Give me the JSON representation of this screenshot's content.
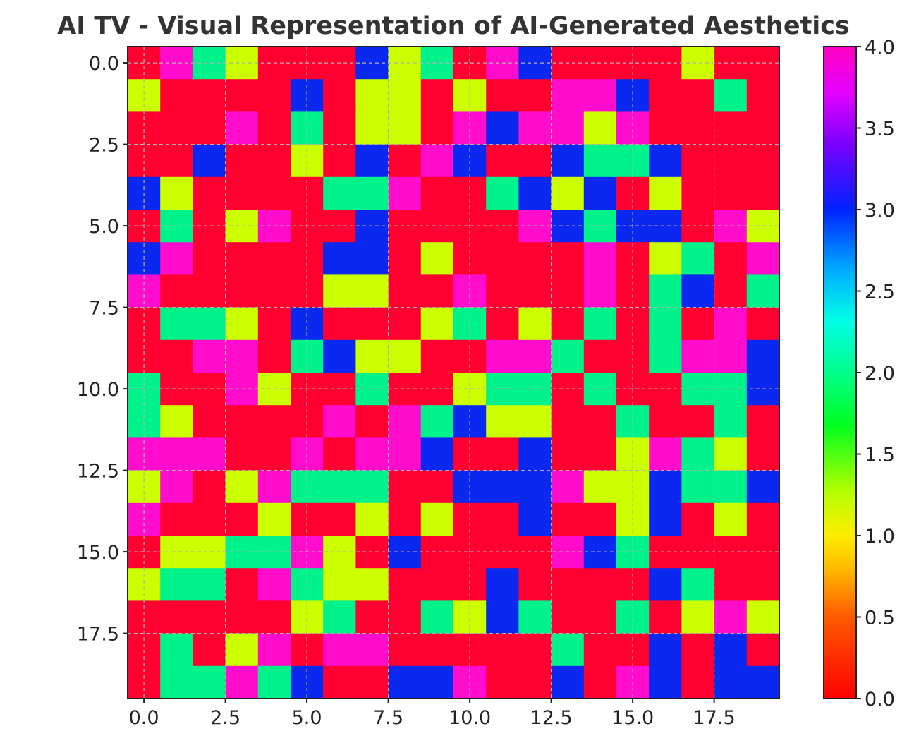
{
  "chart_data": {
    "type": "heatmap",
    "title": "AI TV - Visual Representation of AI-Generated Aesthetics",
    "xlabel": "",
    "ylabel": "",
    "colormap": "gist_rainbow_r",
    "value_range": [
      0,
      4
    ],
    "grid": true,
    "x_ticks": [
      "0.0",
      "2.5",
      "5.0",
      "7.5",
      "10.0",
      "12.5",
      "15.0",
      "17.5"
    ],
    "y_ticks": [
      "0.0",
      "2.5",
      "5.0",
      "7.5",
      "10.0",
      "12.5",
      "15.0",
      "17.5"
    ],
    "colorbar_ticks": [
      "0.0",
      "0.5",
      "1.0",
      "1.5",
      "2.0",
      "2.5",
      "3.0",
      "3.5",
      "4.0"
    ],
    "rows": 20,
    "cols": 20,
    "values": [
      [
        0,
        4,
        2,
        1,
        0,
        0,
        0,
        3,
        1,
        2,
        0,
        4,
        3,
        0,
        0,
        0,
        0,
        1,
        0,
        0
      ],
      [
        1,
        0,
        0,
        0,
        0,
        3,
        0,
        1,
        1,
        0,
        1,
        0,
        0,
        4,
        4,
        3,
        0,
        0,
        2,
        0
      ],
      [
        0,
        0,
        0,
        4,
        0,
        2,
        0,
        1,
        1,
        0,
        4,
        3,
        4,
        4,
        1,
        4,
        0,
        0,
        0,
        0
      ],
      [
        0,
        0,
        3,
        0,
        0,
        1,
        0,
        3,
        0,
        4,
        3,
        0,
        0,
        3,
        2,
        2,
        3,
        0,
        0,
        0
      ],
      [
        3,
        1,
        0,
        0,
        0,
        0,
        2,
        2,
        4,
        0,
        0,
        2,
        3,
        1,
        3,
        0,
        1,
        0,
        0,
        0
      ],
      [
        0,
        2,
        0,
        1,
        4,
        0,
        0,
        3,
        0,
        0,
        0,
        0,
        4,
        3,
        2,
        3,
        3,
        0,
        4,
        1
      ],
      [
        3,
        4,
        0,
        0,
        0,
        0,
        3,
        3,
        0,
        1,
        0,
        0,
        0,
        0,
        4,
        0,
        1,
        2,
        0,
        4
      ],
      [
        4,
        0,
        0,
        0,
        0,
        0,
        1,
        1,
        0,
        0,
        4,
        0,
        0,
        0,
        4,
        0,
        2,
        3,
        0,
        2
      ],
      [
        0,
        2,
        2,
        1,
        0,
        3,
        0,
        0,
        0,
        1,
        2,
        0,
        1,
        0,
        2,
        0,
        2,
        0,
        4,
        0
      ],
      [
        0,
        0,
        4,
        4,
        0,
        2,
        3,
        1,
        1,
        0,
        0,
        4,
        4,
        2,
        0,
        0,
        2,
        4,
        4,
        3
      ],
      [
        2,
        0,
        0,
        4,
        1,
        0,
        0,
        2,
        0,
        0,
        1,
        2,
        2,
        0,
        2,
        0,
        0,
        2,
        2,
        3
      ],
      [
        2,
        1,
        0,
        0,
        0,
        0,
        4,
        0,
        4,
        2,
        3,
        1,
        1,
        0,
        0,
        2,
        0,
        0,
        2,
        0
      ],
      [
        4,
        4,
        4,
        0,
        0,
        4,
        0,
        4,
        4,
        3,
        0,
        0,
        3,
        0,
        0,
        1,
        4,
        2,
        1,
        0
      ],
      [
        1,
        4,
        0,
        1,
        4,
        2,
        2,
        2,
        0,
        0,
        3,
        3,
        3,
        4,
        1,
        1,
        3,
        2,
        2,
        3
      ],
      [
        4,
        0,
        0,
        0,
        1,
        0,
        0,
        1,
        0,
        1,
        0,
        0,
        3,
        0,
        0,
        1,
        3,
        0,
        1,
        0
      ],
      [
        0,
        1,
        1,
        2,
        2,
        4,
        1,
        0,
        3,
        0,
        0,
        0,
        0,
        4,
        3,
        2,
        0,
        0,
        0,
        0
      ],
      [
        1,
        2,
        2,
        0,
        4,
        2,
        1,
        1,
        0,
        0,
        0,
        3,
        0,
        0,
        0,
        0,
        3,
        2,
        0,
        0
      ],
      [
        0,
        0,
        0,
        0,
        0,
        1,
        2,
        0,
        0,
        2,
        1,
        3,
        2,
        0,
        0,
        2,
        0,
        1,
        4,
        1
      ],
      [
        0,
        2,
        0,
        1,
        4,
        0,
        4,
        4,
        0,
        0,
        0,
        0,
        0,
        2,
        0,
        0,
        3,
        0,
        3,
        0
      ],
      [
        0,
        2,
        2,
        4,
        2,
        3,
        0,
        0,
        3,
        3,
        4,
        0,
        0,
        3,
        0,
        4,
        3,
        0,
        3,
        3
      ]
    ]
  }
}
